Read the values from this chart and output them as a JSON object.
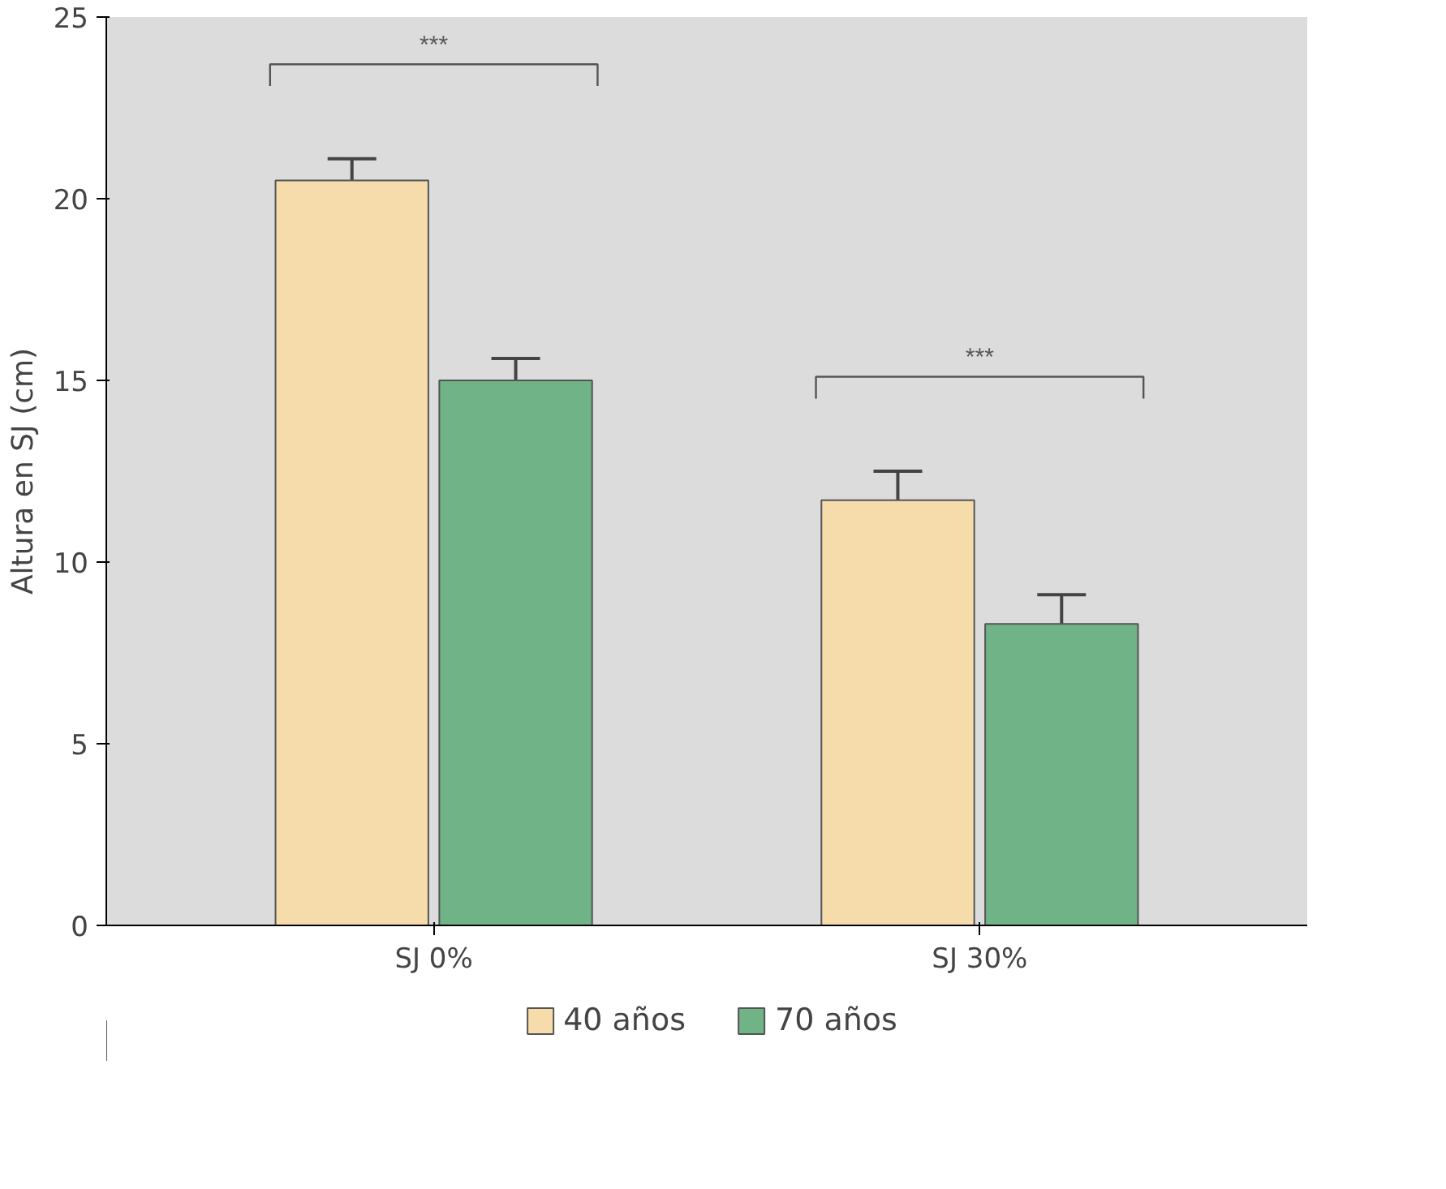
{
  "chart_data": {
    "type": "bar",
    "ylabel": "Altura en SJ (cm)",
    "categories": [
      "SJ 0%",
      "SJ 30%"
    ],
    "series": [
      {
        "name": "40 años",
        "color": "#f6dcaa",
        "values": [
          20.5,
          11.7
        ],
        "errors": [
          0.6,
          0.8
        ]
      },
      {
        "name": "70 años",
        "color": "#6fb386",
        "values": [
          15.0,
          8.3
        ],
        "errors": [
          0.6,
          0.8
        ]
      }
    ],
    "ylim": [
      0,
      25
    ],
    "yticks": [
      0,
      5,
      10,
      15,
      20,
      25
    ],
    "grid": false,
    "legend": "bottom",
    "annotations": [
      "***",
      "***"
    ]
  }
}
